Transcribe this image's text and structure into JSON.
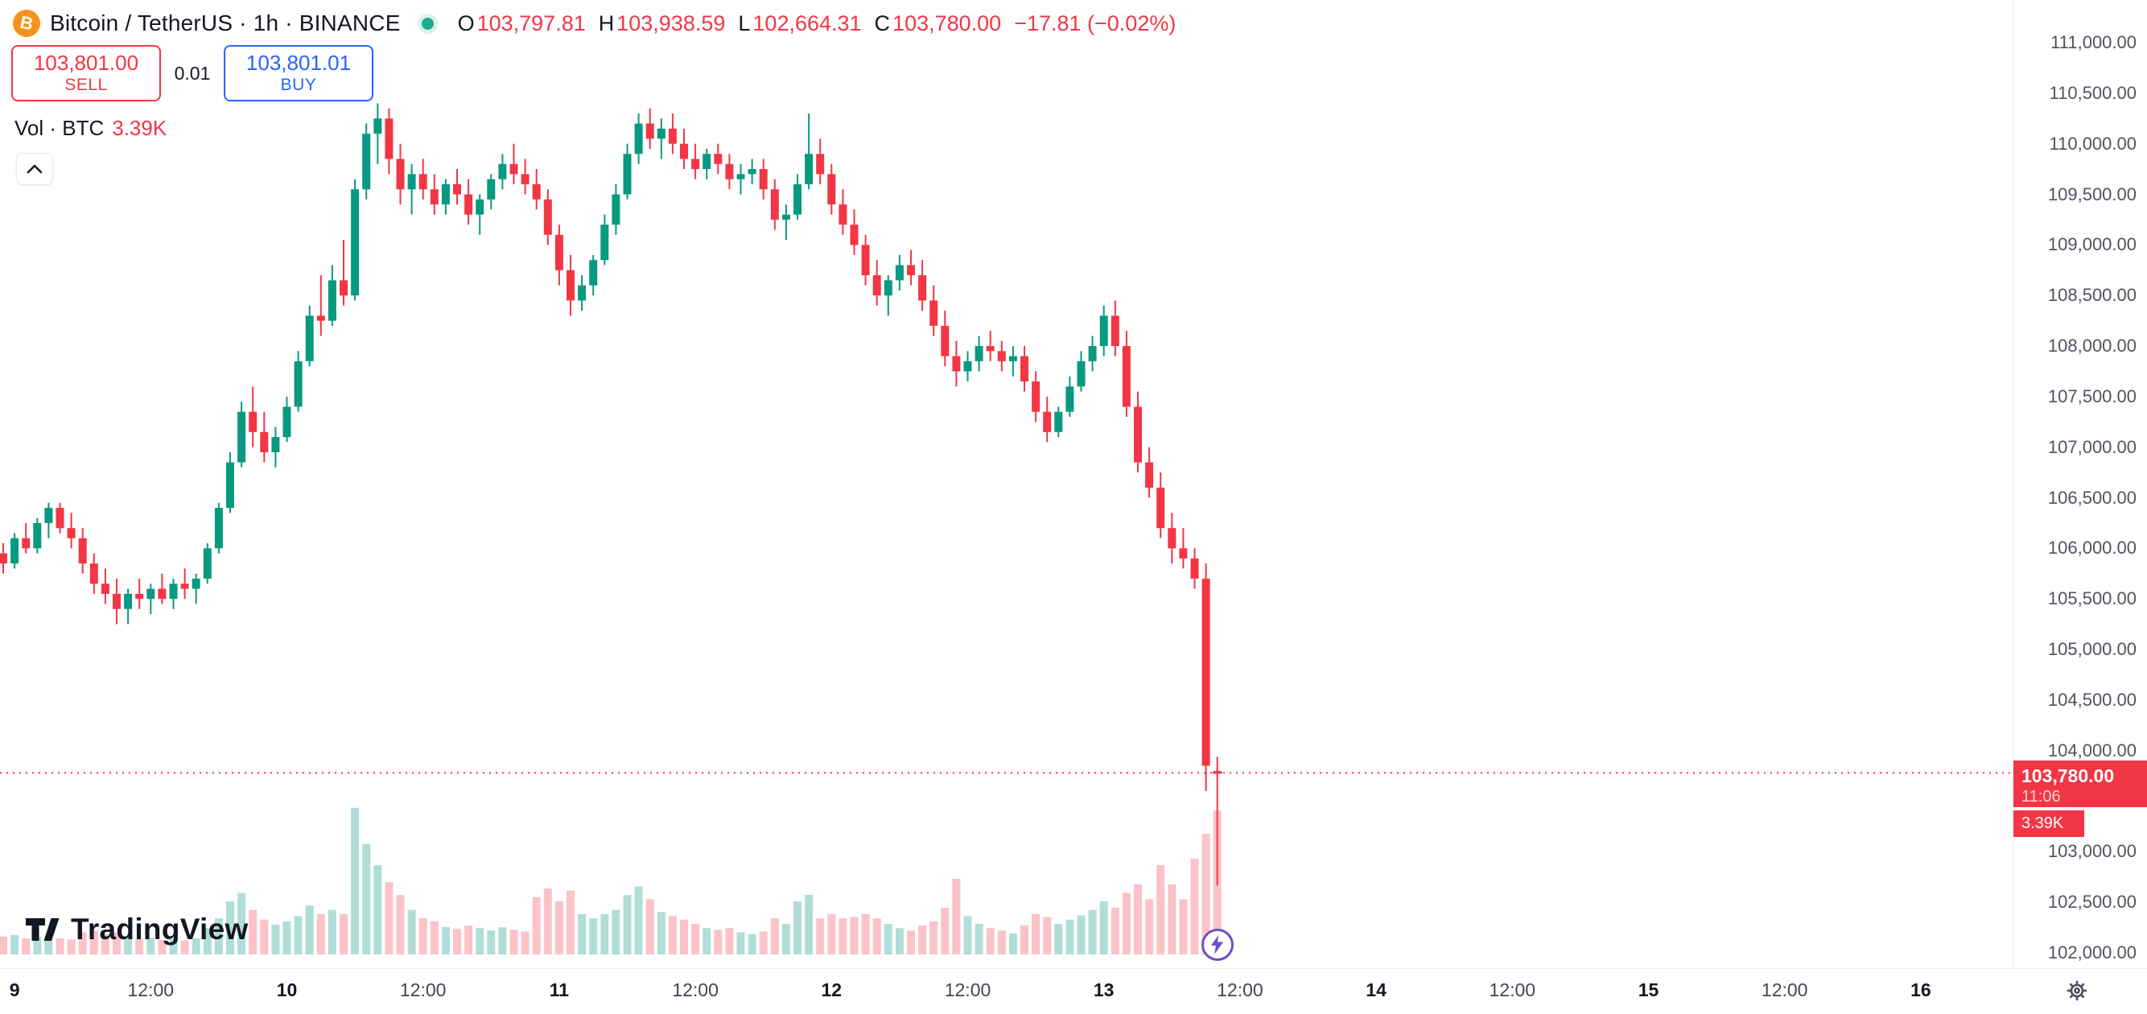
{
  "header": {
    "title": "Bitcoin / TetherUS · 1h · BINANCE",
    "ohlc": {
      "o_label": "O",
      "o": "103,797.81",
      "h_label": "H",
      "h": "103,938.59",
      "l_label": "L",
      "l": "102,664.31",
      "c_label": "C",
      "c": "103,780.00",
      "change": "−17.81 (−0.02%)"
    },
    "sell": {
      "price": "103,801.00",
      "label": "SELL"
    },
    "spread": "0.01",
    "buy": {
      "price": "103,801.01",
      "label": "BUY"
    },
    "volume_label": "Vol · BTC",
    "volume_value": "3.39K"
  },
  "price_tag": {
    "price": "103,780.00",
    "countdown": "11:06",
    "volume": "3.39K"
  },
  "watermark": {
    "text": "TradingView"
  },
  "colors": {
    "up": "#089981",
    "down": "#f23645",
    "vol_up": "rgba(8,153,129,0.32)",
    "vol_down": "rgba(242,54,69,0.30)",
    "buy_blue": "#2962ff",
    "bitcoin_orange": "#f7931a",
    "status_green": "#22ab94",
    "lightning_purple": "#6d4fc2"
  },
  "chart_data": {
    "type": "candlestick",
    "title": "Bitcoin / TetherUS · 1h · BINANCE",
    "interval": "1h",
    "current_price": 103780.0,
    "price_axis": {
      "min": 102000,
      "max": 111000,
      "step": 500
    },
    "price_labels": [
      {
        "t": "111,000.00",
        "p": 111000
      },
      {
        "t": "110,500.00",
        "p": 110500
      },
      {
        "t": "110,000.00",
        "p": 110000
      },
      {
        "t": "109,500.00",
        "p": 109500
      },
      {
        "t": "109,000.00",
        "p": 109000
      },
      {
        "t": "108,500.00",
        "p": 108500
      },
      {
        "t": "108,000.00",
        "p": 108000
      },
      {
        "t": "107,500.00",
        "p": 107500
      },
      {
        "t": "107,000.00",
        "p": 107000
      },
      {
        "t": "106,500.00",
        "p": 106500
      },
      {
        "t": "106,000.00",
        "p": 106000
      },
      {
        "t": "105,500.00",
        "p": 105500
      },
      {
        "t": "105,000.00",
        "p": 105000
      },
      {
        "t": "104,500.00",
        "p": 104500
      },
      {
        "t": "104,000.00",
        "p": 104000
      },
      {
        "t": "103,000.00",
        "p": 103000
      },
      {
        "t": "102,500.00",
        "p": 102500
      },
      {
        "t": "102,000.00",
        "p": 102000
      }
    ],
    "time_labels": [
      {
        "t": "9",
        "h": 0,
        "major": true
      },
      {
        "t": "12:00",
        "h": 12
      },
      {
        "t": "10",
        "h": 24,
        "major": true
      },
      {
        "t": "12:00",
        "h": 36
      },
      {
        "t": "11",
        "h": 48,
        "major": true
      },
      {
        "t": "12:00",
        "h": 60
      },
      {
        "t": "12",
        "h": 72,
        "major": true
      },
      {
        "t": "12:00",
        "h": 84
      },
      {
        "t": "13",
        "h": 96,
        "major": true
      },
      {
        "t": "12:00",
        "h": 108
      },
      {
        "t": "14",
        "h": 120,
        "major": true
      },
      {
        "t": "12:00",
        "h": 132
      },
      {
        "t": "15",
        "h": 144,
        "major": true
      },
      {
        "t": "12:00",
        "h": 156
      },
      {
        "t": "16",
        "h": 168,
        "major": true
      }
    ],
    "candles": [
      [
        105950,
        106050,
        105750,
        105850,
        420
      ],
      [
        105850,
        106150,
        105800,
        106100,
        460
      ],
      [
        106100,
        106250,
        105950,
        106000,
        380
      ],
      [
        106000,
        106300,
        105950,
        106250,
        420
      ],
      [
        106250,
        106450,
        106100,
        106400,
        450
      ],
      [
        106400,
        106450,
        106150,
        106200,
        380
      ],
      [
        106200,
        106350,
        106000,
        106100,
        350
      ],
      [
        106100,
        106200,
        105750,
        105850,
        520
      ],
      [
        105850,
        105950,
        105550,
        105650,
        560
      ],
      [
        105650,
        105800,
        105450,
        105550,
        480
      ],
      [
        105550,
        105700,
        105250,
        105400,
        520
      ],
      [
        105400,
        105600,
        105250,
        105550,
        430
      ],
      [
        105550,
        105700,
        105400,
        105500,
        360
      ],
      [
        105500,
        105650,
        105350,
        105600,
        390
      ],
      [
        105600,
        105750,
        105450,
        105500,
        340
      ],
      [
        105500,
        105700,
        105400,
        105650,
        360
      ],
      [
        105650,
        105800,
        105500,
        105600,
        330
      ],
      [
        105600,
        105750,
        105450,
        105700,
        380
      ],
      [
        105700,
        106050,
        105650,
        106000,
        620
      ],
      [
        106000,
        106450,
        105950,
        106400,
        850
      ],
      [
        106400,
        106950,
        106350,
        106850,
        1250
      ],
      [
        106850,
        107450,
        106800,
        107350,
        1450
      ],
      [
        107350,
        107600,
        107000,
        107150,
        1050
      ],
      [
        107150,
        107350,
        106850,
        106950,
        820
      ],
      [
        106950,
        107200,
        106800,
        107100,
        700
      ],
      [
        107100,
        107500,
        107050,
        107400,
        780
      ],
      [
        107400,
        107950,
        107350,
        107850,
        900
      ],
      [
        107850,
        108400,
        107800,
        108300,
        1150
      ],
      [
        108300,
        108700,
        108100,
        108250,
        950
      ],
      [
        108250,
        108800,
        108200,
        108650,
        1050
      ],
      [
        108650,
        109050,
        108400,
        108500,
        950
      ],
      [
        108500,
        109650,
        108450,
        109550,
        3450
      ],
      [
        109550,
        110200,
        109450,
        110100,
        2600
      ],
      [
        110100,
        110400,
        109800,
        110250,
        2100
      ],
      [
        110250,
        110350,
        109700,
        109850,
        1700
      ],
      [
        109850,
        110000,
        109400,
        109550,
        1400
      ],
      [
        109550,
        109800,
        109300,
        109700,
        1050
      ],
      [
        109700,
        109850,
        109450,
        109550,
        850
      ],
      [
        109550,
        109700,
        109300,
        109400,
        780
      ],
      [
        109400,
        109650,
        109300,
        109600,
        650
      ],
      [
        109600,
        109750,
        109400,
        109500,
        600
      ],
      [
        109500,
        109650,
        109200,
        109300,
        680
      ],
      [
        109300,
        109500,
        109100,
        109450,
        620
      ],
      [
        109450,
        109700,
        109350,
        109650,
        560
      ],
      [
        109650,
        109900,
        109550,
        109800,
        640
      ],
      [
        109800,
        110000,
        109600,
        109700,
        580
      ],
      [
        109700,
        109850,
        109500,
        109600,
        540
      ],
      [
        109600,
        109750,
        109350,
        109450,
        1350
      ],
      [
        109450,
        109550,
        109000,
        109100,
        1550
      ],
      [
        109100,
        109200,
        108600,
        108750,
        1250
      ],
      [
        108750,
        108900,
        108300,
        108450,
        1500
      ],
      [
        108450,
        108700,
        108350,
        108600,
        950
      ],
      [
        108600,
        108900,
        108500,
        108850,
        850
      ],
      [
        108850,
        109300,
        108800,
        109200,
        950
      ],
      [
        109200,
        109600,
        109100,
        109500,
        1050
      ],
      [
        109500,
        110000,
        109450,
        109900,
        1400
      ],
      [
        109900,
        110300,
        109800,
        110200,
        1600
      ],
      [
        110200,
        110350,
        109950,
        110050,
        1300
      ],
      [
        110050,
        110250,
        109850,
        110150,
        1000
      ],
      [
        110150,
        110300,
        109900,
        110000,
        900
      ],
      [
        110000,
        110150,
        109750,
        109850,
        820
      ],
      [
        109850,
        110000,
        109650,
        109750,
        720
      ],
      [
        109750,
        109950,
        109650,
        109900,
        620
      ],
      [
        109900,
        110000,
        109700,
        109800,
        580
      ],
      [
        109800,
        109900,
        109550,
        109650,
        620
      ],
      [
        109650,
        109800,
        109500,
        109700,
        520
      ],
      [
        109700,
        109850,
        109600,
        109750,
        480
      ],
      [
        109750,
        109850,
        109450,
        109550,
        540
      ],
      [
        109550,
        109650,
        109150,
        109250,
        850
      ],
      [
        109250,
        109400,
        109050,
        109300,
        720
      ],
      [
        109300,
        109700,
        109250,
        109600,
        1250
      ],
      [
        109600,
        110300,
        109550,
        109900,
        1400
      ],
      [
        109900,
        110050,
        109600,
        109700,
        850
      ],
      [
        109700,
        109800,
        109300,
        109400,
        950
      ],
      [
        109400,
        109550,
        109100,
        109200,
        850
      ],
      [
        109200,
        109350,
        108900,
        109000,
        880
      ],
      [
        109000,
        109100,
        108600,
        108700,
        950
      ],
      [
        108700,
        108850,
        108400,
        108500,
        850
      ],
      [
        108500,
        108700,
        108300,
        108650,
        720
      ],
      [
        108650,
        108900,
        108550,
        108800,
        620
      ],
      [
        108800,
        108950,
        108600,
        108700,
        560
      ],
      [
        108700,
        108850,
        108350,
        108450,
        680
      ],
      [
        108450,
        108600,
        108100,
        108200,
        780
      ],
      [
        108200,
        108350,
        107800,
        107900,
        1100
      ],
      [
        107900,
        108050,
        107600,
        107750,
        1780
      ],
      [
        107750,
        107950,
        107650,
        107850,
        900
      ],
      [
        107850,
        108100,
        107750,
        108000,
        720
      ],
      [
        108000,
        108150,
        107850,
        107950,
        620
      ],
      [
        107950,
        108050,
        107750,
        107850,
        560
      ],
      [
        107850,
        108000,
        107700,
        107900,
        500
      ],
      [
        107900,
        108000,
        107550,
        107650,
        680
      ],
      [
        107650,
        107750,
        107250,
        107350,
        950
      ],
      [
        107350,
        107500,
        107050,
        107150,
        880
      ],
      [
        107150,
        107400,
        107100,
        107350,
        720
      ],
      [
        107350,
        107700,
        107300,
        107600,
        820
      ],
      [
        107600,
        107950,
        107550,
        107850,
        920
      ],
      [
        107850,
        108100,
        107750,
        108000,
        1050
      ],
      [
        108000,
        108400,
        107900,
        108300,
        1250
      ],
      [
        108300,
        108450,
        107900,
        108000,
        1100
      ],
      [
        108000,
        108150,
        107300,
        107400,
        1450
      ],
      [
        107400,
        107550,
        106750,
        106850,
        1650
      ],
      [
        106850,
        107000,
        106500,
        106600,
        1300
      ],
      [
        106600,
        106750,
        106100,
        106200,
        2100
      ],
      [
        106200,
        106350,
        105850,
        106000,
        1650
      ],
      [
        106000,
        106200,
        105800,
        105900,
        1300
      ],
      [
        105900,
        106000,
        105600,
        105700,
        2250
      ],
      [
        105700,
        105850,
        103600,
        103850,
        2840
      ],
      [
        103797.81,
        103938.59,
        102664.31,
        103780.0,
        3390
      ]
    ]
  }
}
